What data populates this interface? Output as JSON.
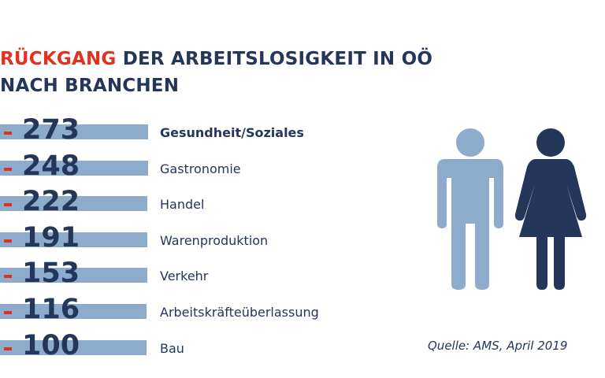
{
  "title": {
    "accent": "RÜCKGANG",
    "rest_line1": " DER ARBEITSLOSIGKEIT IN OÖ",
    "line2": "NACH BRANCHEN"
  },
  "chart_data": {
    "type": "bar",
    "categories": [
      "Gesundheit/Soziales",
      "Gastronomie",
      "Handel",
      "Warenproduktion",
      "Verkehr",
      "Arbeitskräfteüberlassung",
      "Bau"
    ],
    "values": [
      273,
      248,
      222,
      191,
      153,
      116,
      100
    ],
    "value_labels": [
      "273",
      "248",
      "222",
      "191",
      "153",
      "116",
      "100"
    ],
    "sign": "-",
    "highlight_category": "Gesundheit/Soziales"
  },
  "colors": {
    "bar": "#8dabcb",
    "accent": "#e2321f",
    "text": "#24365a",
    "man_icon": "#8dabcb",
    "woman_icon": "#24365a"
  },
  "icons": [
    "man-icon",
    "woman-icon"
  ],
  "source": "Quelle: AMS, April 2019"
}
